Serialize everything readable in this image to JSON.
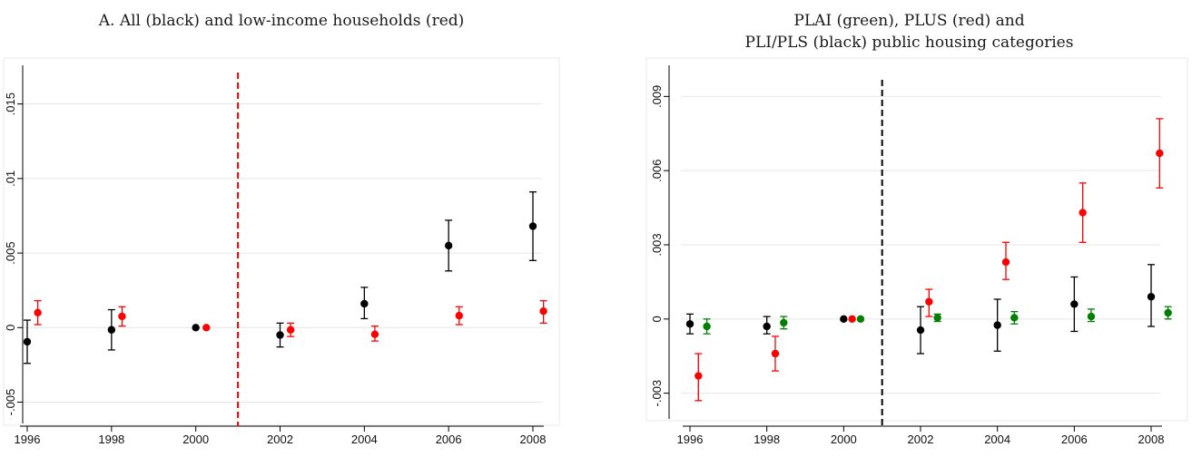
{
  "colors": {
    "black": "#000000",
    "red": "#ff0000",
    "green": "#008000",
    "grid": "#e6e6e6",
    "plotRegion": "#eaeaea"
  },
  "chart_data": [
    {
      "type": "scatter",
      "title": "A. All (black) and low-income households (red)",
      "x_ticks": [
        "1996",
        "1998",
        "2000",
        "2002",
        "2004",
        "2006",
        "2008"
      ],
      "xlim": [
        1996,
        2008
      ],
      "y_ticks": [
        {
          "value": -0.005,
          "label": "-.005"
        },
        {
          "value": 0,
          "label": "0"
        },
        {
          "value": 0.005,
          "label": ".005"
        },
        {
          "value": 0.01,
          "label": ".01"
        },
        {
          "value": 0.015,
          "label": ".015"
        }
      ],
      "ylim": [
        -0.0057,
        0.0165
      ],
      "reference_line": {
        "x": 2001,
        "color": "#ff0000",
        "style": "dashed"
      },
      "grid": true,
      "series": [
        {
          "color": "#000000",
          "offset": 0,
          "points": [
            {
              "year": 1996,
              "y": -0.00095,
              "lo": -0.0024,
              "hi": 0.0005
            },
            {
              "year": 1998,
              "y": -0.00015,
              "lo": -0.0015,
              "hi": 0.0012
            },
            {
              "year": 2000,
              "y": 0.0,
              "lo": null,
              "hi": null
            },
            {
              "year": 2002,
              "y": -0.0005,
              "lo": -0.0013,
              "hi": 0.0003
            },
            {
              "year": 2004,
              "y": 0.0016,
              "lo": 0.0006,
              "hi": 0.0027
            },
            {
              "year": 2006,
              "y": 0.0055,
              "lo": 0.0038,
              "hi": 0.0072
            },
            {
              "year": 2008,
              "y": 0.0068,
              "lo": 0.0045,
              "hi": 0.0091
            }
          ]
        },
        {
          "color": "#ff0000",
          "offset": 0.25,
          "points": [
            {
              "year": 1996,
              "y": 0.001,
              "lo": 0.0002,
              "hi": 0.0018
            },
            {
              "year": 1998,
              "y": 0.00075,
              "lo": 0.0001,
              "hi": 0.0014
            },
            {
              "year": 2000,
              "y": 0.0,
              "lo": null,
              "hi": null
            },
            {
              "year": 2002,
              "y": -0.00015,
              "lo": -0.0006,
              "hi": 0.0003
            },
            {
              "year": 2004,
              "y": -0.00045,
              "lo": -0.0009,
              "hi": 0.0001
            },
            {
              "year": 2006,
              "y": 0.0008,
              "lo": 0.0002,
              "hi": 0.0014
            },
            {
              "year": 2008,
              "y": 0.0011,
              "lo": 0.0003,
              "hi": 0.0018
            }
          ]
        }
      ]
    },
    {
      "type": "scatter",
      "title": "PLAI (green), PLUS (red) and PLI/PLS (black) public housing categories",
      "title_lines": [
        "PLAI (green), PLUS (red) and",
        "PLI/PLS (black) public housing categories"
      ],
      "x_ticks": [
        "1996",
        "1998",
        "2000",
        "2002",
        "2004",
        "2006",
        "2008"
      ],
      "xlim": [
        1996,
        2008
      ],
      "y_ticks": [
        {
          "value": -0.003,
          "label": "-.003"
        },
        {
          "value": 0,
          "label": "0"
        },
        {
          "value": 0.003,
          "label": ".003"
        },
        {
          "value": 0.006,
          "label": ".006"
        },
        {
          "value": 0.009,
          "label": ".009"
        }
      ],
      "ylim": [
        -0.0036,
        0.0096
      ],
      "reference_line": {
        "x": 2001,
        "color": "#000000",
        "style": "dashed"
      },
      "grid": true,
      "series": [
        {
          "color": "#000000",
          "offset": 0,
          "points": [
            {
              "year": 1996,
              "y": -0.0002,
              "lo": -0.0006,
              "hi": 0.0002
            },
            {
              "year": 1998,
              "y": -0.0003,
              "lo": -0.0006,
              "hi": 0.0001
            },
            {
              "year": 2000,
              "y": 0.0,
              "lo": null,
              "hi": null
            },
            {
              "year": 2002,
              "y": -0.00045,
              "lo": -0.0014,
              "hi": 0.0005
            },
            {
              "year": 2004,
              "y": -0.00025,
              "lo": -0.0013,
              "hi": 0.0008
            },
            {
              "year": 2006,
              "y": 0.0006,
              "lo": -0.0005,
              "hi": 0.0017
            },
            {
              "year": 2008,
              "y": 0.0009,
              "lo": -0.0003,
              "hi": 0.0022
            }
          ]
        },
        {
          "color": "#ff0000",
          "offset": 0.22,
          "points": [
            {
              "year": 1996,
              "y": -0.0023,
              "lo": -0.0033,
              "hi": -0.0014
            },
            {
              "year": 1998,
              "y": -0.0014,
              "lo": -0.0021,
              "hi": -0.0007
            },
            {
              "year": 2000,
              "y": 0.0,
              "lo": null,
              "hi": null
            },
            {
              "year": 2002,
              "y": 0.0007,
              "lo": 0.0001,
              "hi": 0.0012
            },
            {
              "year": 2004,
              "y": 0.0023,
              "lo": 0.0016,
              "hi": 0.0031
            },
            {
              "year": 2006,
              "y": 0.0043,
              "lo": 0.0031,
              "hi": 0.0055
            },
            {
              "year": 2008,
              "y": 0.0067,
              "lo": 0.0053,
              "hi": 0.0081
            }
          ]
        },
        {
          "color": "#008000",
          "offset": 0.44,
          "points": [
            {
              "year": 1996,
              "y": -0.0003,
              "lo": -0.0006,
              "hi": 0.0
            },
            {
              "year": 1998,
              "y": -0.00015,
              "lo": -0.0004,
              "hi": 0.0001
            },
            {
              "year": 2000,
              "y": 0.0,
              "lo": null,
              "hi": null
            },
            {
              "year": 2002,
              "y": 5e-05,
              "lo": -0.0001,
              "hi": 0.0002
            },
            {
              "year": 2004,
              "y": 5e-05,
              "lo": -0.0002,
              "hi": 0.0003
            },
            {
              "year": 2006,
              "y": 0.0001,
              "lo": -0.0001,
              "hi": 0.0004
            },
            {
              "year": 2008,
              "y": 0.00025,
              "lo": 0.0,
              "hi": 0.0005
            }
          ]
        }
      ]
    }
  ]
}
